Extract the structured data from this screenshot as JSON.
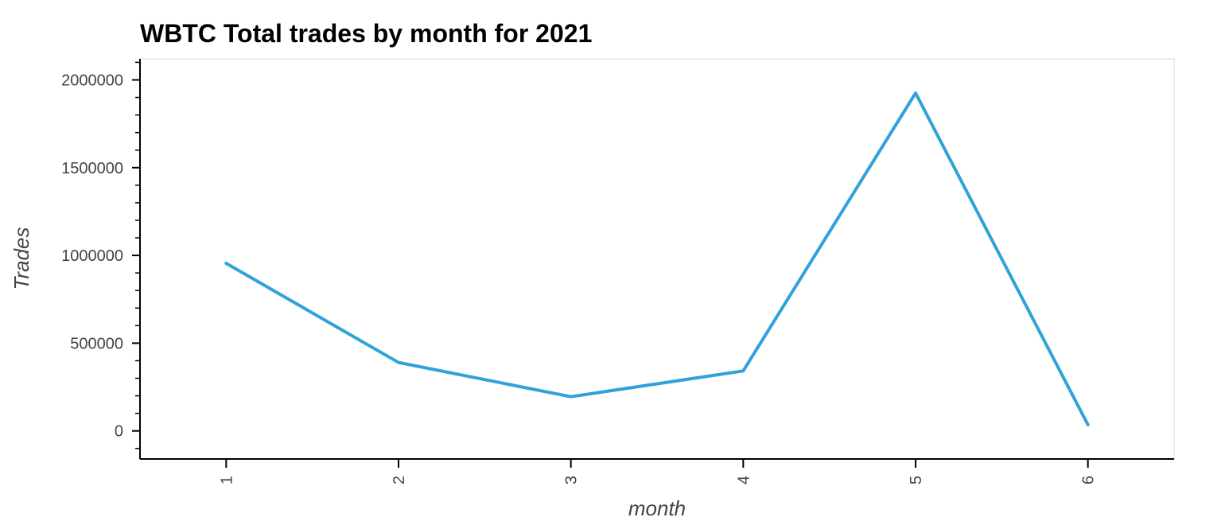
{
  "chart_data": {
    "type": "line",
    "title": "WBTC Total trades by month for 2021",
    "xlabel": "month",
    "ylabel": "Trades",
    "x": [
      1,
      2,
      3,
      4,
      5,
      6
    ],
    "series": [
      {
        "values": [
          955000,
          390000,
          195000,
          342000,
          1925000,
          35000
        ]
      }
    ],
    "xlim": [
      0.5,
      6.5
    ],
    "ylim": [
      -160000,
      2120000
    ],
    "yticks": [
      0,
      500000,
      1000000,
      1500000,
      2000000
    ],
    "y_minor_step": 100000,
    "x_tick_rotation": "vertical",
    "grid": false,
    "line_color": "#30a2da"
  }
}
